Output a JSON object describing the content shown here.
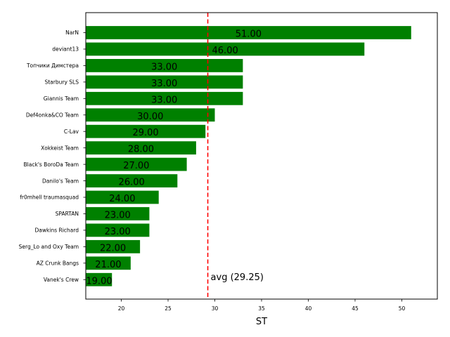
{
  "chart_data": {
    "type": "bar",
    "orientation": "horizontal",
    "title": "",
    "xlabel": "ST",
    "ylabel": "",
    "xlim": [
      16.2,
      53.8
    ],
    "xticks": [
      20,
      25,
      30,
      35,
      40,
      45,
      50
    ],
    "grid": false,
    "bar_color": "#008000",
    "categories": [
      "NarN",
      "deviant13",
      "Топчики Димстера",
      "Starbury SLS",
      "Giannis Team",
      "Def4onka&CO Team",
      "C-Lav",
      "Xokkeist Team",
      "Black's BoroDa Team",
      "Danilo's Team",
      "fr0mhell traumasquad",
      "SPARTAN",
      "Dawkins Richard",
      "Serg_Lo and Oxy Team",
      "AZ Crunk Bangs",
      "Vanek's Crew"
    ],
    "values": [
      51,
      46,
      33,
      33,
      33,
      30,
      29,
      28,
      27,
      26,
      24,
      23,
      23,
      22,
      21,
      19
    ],
    "value_labels": [
      "51.00",
      "46.00",
      "33.00",
      "33.00",
      "33.00",
      "30.00",
      "29.00",
      "28.00",
      "27.00",
      "26.00",
      "24.00",
      "23.00",
      "23.00",
      "22.00",
      "21.00",
      "19.00"
    ],
    "average": {
      "value": 29.25,
      "label": "avg (29.25)",
      "color": "#ff0000",
      "style": "dashed"
    }
  }
}
